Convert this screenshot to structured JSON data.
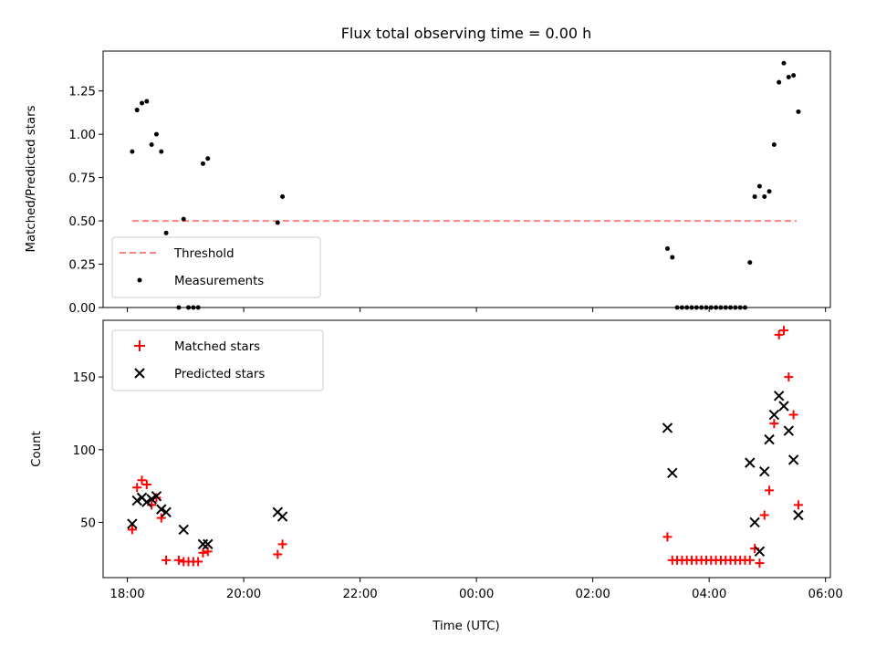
{
  "chart_data": [
    {
      "type": "scatter",
      "title": "Flux total observing time = 0.00 h",
      "xlabel": "",
      "ylabel": "Matched/Predicted stars",
      "xlim": [
        "2000-01-01T17:35",
        "2000-01-02T06:05"
      ],
      "ylim": [
        0,
        1.48
      ],
      "x_tick_labels": [
        "18:00",
        "20:00",
        "22:00",
        "00:00",
        "02:00",
        "04:00",
        "06:00"
      ],
      "y_ticks": [
        0.0,
        0.25,
        0.5,
        0.75,
        1.0,
        1.25
      ],
      "y_tick_labels": [
        "0.00",
        "0.25",
        "0.50",
        "0.75",
        "1.00",
        "1.25"
      ],
      "legend_position": "bottom-left",
      "series": [
        {
          "name": "Threshold",
          "style": "dashed-line",
          "color": "#ff8080",
          "points": [
            [
              "18:05",
              0.5
            ],
            [
              "05:30",
              0.5
            ]
          ]
        },
        {
          "name": "Measurements",
          "style": "dot",
          "color": "#000000",
          "points": [
            [
              "18:05",
              0.9
            ],
            [
              "18:10",
              1.14
            ],
            [
              "18:15",
              1.18
            ],
            [
              "18:20",
              1.19
            ],
            [
              "18:25",
              0.94
            ],
            [
              "18:30",
              1.0
            ],
            [
              "18:35",
              0.9
            ],
            [
              "18:40",
              0.43
            ],
            [
              "18:53",
              0.0
            ],
            [
              "18:58",
              0.51
            ],
            [
              "19:03",
              0.0
            ],
            [
              "19:08",
              0.0
            ],
            [
              "19:13",
              0.0
            ],
            [
              "19:18",
              0.83
            ],
            [
              "19:23",
              0.86
            ],
            [
              "20:35",
              0.49
            ],
            [
              "20:40",
              0.64
            ],
            [
              "03:17",
              0.34
            ],
            [
              "03:22",
              0.29
            ],
            [
              "03:27",
              0.0
            ],
            [
              "03:32",
              0.0
            ],
            [
              "03:37",
              0.0
            ],
            [
              "03:42",
              0.0
            ],
            [
              "03:47",
              0.0
            ],
            [
              "03:52",
              0.0
            ],
            [
              "03:57",
              0.0
            ],
            [
              "04:02",
              0.0
            ],
            [
              "04:07",
              0.0
            ],
            [
              "04:12",
              0.0
            ],
            [
              "04:17",
              0.0
            ],
            [
              "04:22",
              0.0
            ],
            [
              "04:27",
              0.0
            ],
            [
              "04:32",
              0.0
            ],
            [
              "04:37",
              0.0
            ],
            [
              "04:42",
              0.26
            ],
            [
              "04:47",
              0.64
            ],
            [
              "04:52",
              0.7
            ],
            [
              "04:57",
              0.64
            ],
            [
              "05:02",
              0.67
            ],
            [
              "05:07",
              0.94
            ],
            [
              "05:12",
              1.3
            ],
            [
              "05:17",
              1.41
            ],
            [
              "05:22",
              1.33
            ],
            [
              "05:27",
              1.34
            ],
            [
              "05:32",
              1.13
            ]
          ]
        }
      ]
    },
    {
      "type": "scatter",
      "title": "",
      "xlabel": "Time (UTC)",
      "ylabel": "Count",
      "xlim": [
        "2000-01-01T17:35",
        "2000-01-02T06:05"
      ],
      "ylim": [
        12,
        189
      ],
      "x_tick_labels": [
        "18:00",
        "20:00",
        "22:00",
        "00:00",
        "02:00",
        "04:00",
        "06:00"
      ],
      "y_ticks": [
        50,
        100,
        150
      ],
      "y_tick_labels": [
        "50",
        "100",
        "150"
      ],
      "legend_position": "top-left",
      "series": [
        {
          "name": "Matched stars",
          "style": "plus",
          "color": "#ff0000",
          "points": [
            [
              "18:05",
              45
            ],
            [
              "18:10",
              74
            ],
            [
              "18:15",
              79
            ],
            [
              "18:20",
              76
            ],
            [
              "18:25",
              62
            ],
            [
              "18:30",
              67
            ],
            [
              "18:35",
              53
            ],
            [
              "18:40",
              24
            ],
            [
              "18:53",
              24
            ],
            [
              "18:58",
              23
            ],
            [
              "19:03",
              23
            ],
            [
              "19:08",
              23
            ],
            [
              "19:13",
              23
            ],
            [
              "19:18",
              29
            ],
            [
              "19:23",
              30
            ],
            [
              "20:35",
              28
            ],
            [
              "20:40",
              35
            ],
            [
              "03:17",
              40
            ],
            [
              "03:22",
              24
            ],
            [
              "03:27",
              24
            ],
            [
              "03:32",
              24
            ],
            [
              "03:37",
              24
            ],
            [
              "03:42",
              24
            ],
            [
              "03:47",
              24
            ],
            [
              "03:52",
              24
            ],
            [
              "03:57",
              24
            ],
            [
              "04:02",
              24
            ],
            [
              "04:07",
              24
            ],
            [
              "04:12",
              24
            ],
            [
              "04:17",
              24
            ],
            [
              "04:22",
              24
            ],
            [
              "04:27",
              24
            ],
            [
              "04:32",
              24
            ],
            [
              "04:37",
              24
            ],
            [
              "04:42",
              24
            ],
            [
              "04:47",
              32
            ],
            [
              "04:52",
              22
            ],
            [
              "04:57",
              55
            ],
            [
              "05:02",
              72
            ],
            [
              "05:07",
              118
            ],
            [
              "05:12",
              179
            ],
            [
              "05:17",
              182
            ],
            [
              "05:22",
              150
            ],
            [
              "05:27",
              124
            ],
            [
              "05:32",
              62
            ]
          ]
        },
        {
          "name": "Predicted stars",
          "style": "x",
          "color": "#000000",
          "points": [
            [
              "18:05",
              49
            ],
            [
              "18:10",
              65
            ],
            [
              "18:15",
              67
            ],
            [
              "18:20",
              64
            ],
            [
              "18:25",
              66
            ],
            [
              "18:30",
              68
            ],
            [
              "18:35",
              59
            ],
            [
              "18:40",
              57
            ],
            [
              "18:58",
              45
            ],
            [
              "19:18",
              35
            ],
            [
              "19:23",
              35
            ],
            [
              "20:35",
              57
            ],
            [
              "20:40",
              54
            ],
            [
              "03:17",
              115
            ],
            [
              "03:22",
              84
            ],
            [
              "04:42",
              91
            ],
            [
              "04:47",
              50
            ],
            [
              "04:52",
              30
            ],
            [
              "04:57",
              85
            ],
            [
              "05:02",
              107
            ],
            [
              "05:07",
              124
            ],
            [
              "05:12",
              137
            ],
            [
              "05:17",
              130
            ],
            [
              "05:22",
              113
            ],
            [
              "05:27",
              93
            ],
            [
              "05:32",
              55
            ]
          ]
        }
      ]
    }
  ]
}
